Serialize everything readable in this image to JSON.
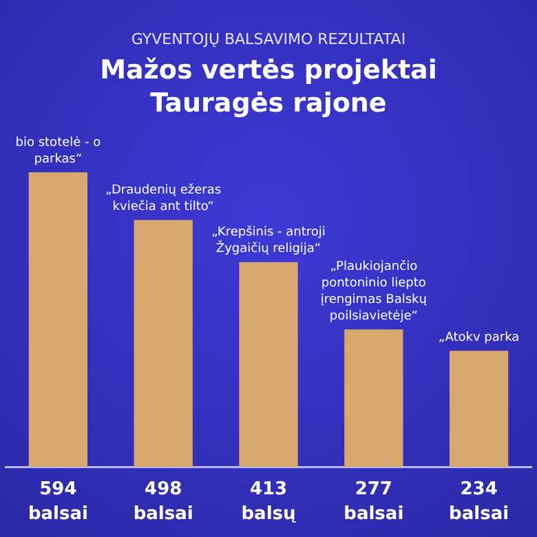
{
  "chart_data": {
    "type": "bar",
    "subtitle": "GYVENTOJŲ BALSAVIMO REZULTATAI",
    "title": "Mažos vertės projektai Tauragės rajone",
    "categories": [
      "bio stotelė - o parkas“",
      "„Draudenių ežeras kviečia ant tilto“",
      "„Krepšinis - antroji Žygaičių religija“",
      "„Plaukiojančio pontoninio liepto įrengimas Balskų poilsiavietėje“",
      "„Atokv parka"
    ],
    "values": [
      594,
      498,
      413,
      277,
      234
    ],
    "value_labels": [
      "594 balsai",
      "498 balsai",
      "413 balsų",
      "277 balsai",
      "234 balsai"
    ],
    "color": "#d8a96c"
  }
}
